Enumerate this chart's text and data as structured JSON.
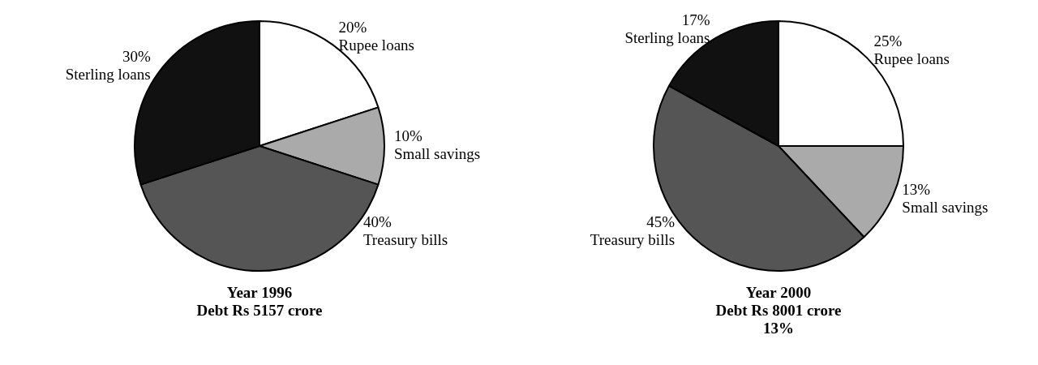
{
  "chart_data": [
    {
      "type": "pie",
      "title": "Year 1996",
      "subtitle": "Debt Rs 5157 crore",
      "categories": [
        "Rupee loans",
        "Small savings",
        "Treasury bills",
        "Sterling loans"
      ],
      "values": [
        20,
        10,
        40,
        30
      ],
      "value_labels": [
        "20%",
        "10%",
        "40%",
        "30%"
      ],
      "colors": [
        "#ffffff",
        "#aaaaaa",
        "#555555",
        "#111111"
      ],
      "legend": false
    },
    {
      "type": "pie",
      "title": "Year 2000",
      "subtitle": "Debt Rs 8001 crore",
      "annotations": [
        "13%"
      ],
      "categories": [
        "Rupee loans",
        "Small savings",
        "Treasury bills",
        "Sterling loans"
      ],
      "values": [
        25,
        13,
        45,
        17
      ],
      "value_labels": [
        "25%",
        "13%",
        "45%",
        "17%"
      ],
      "colors": [
        "#ffffff",
        "#aaaaaa",
        "#555555",
        "#111111"
      ],
      "legend": false
    }
  ]
}
